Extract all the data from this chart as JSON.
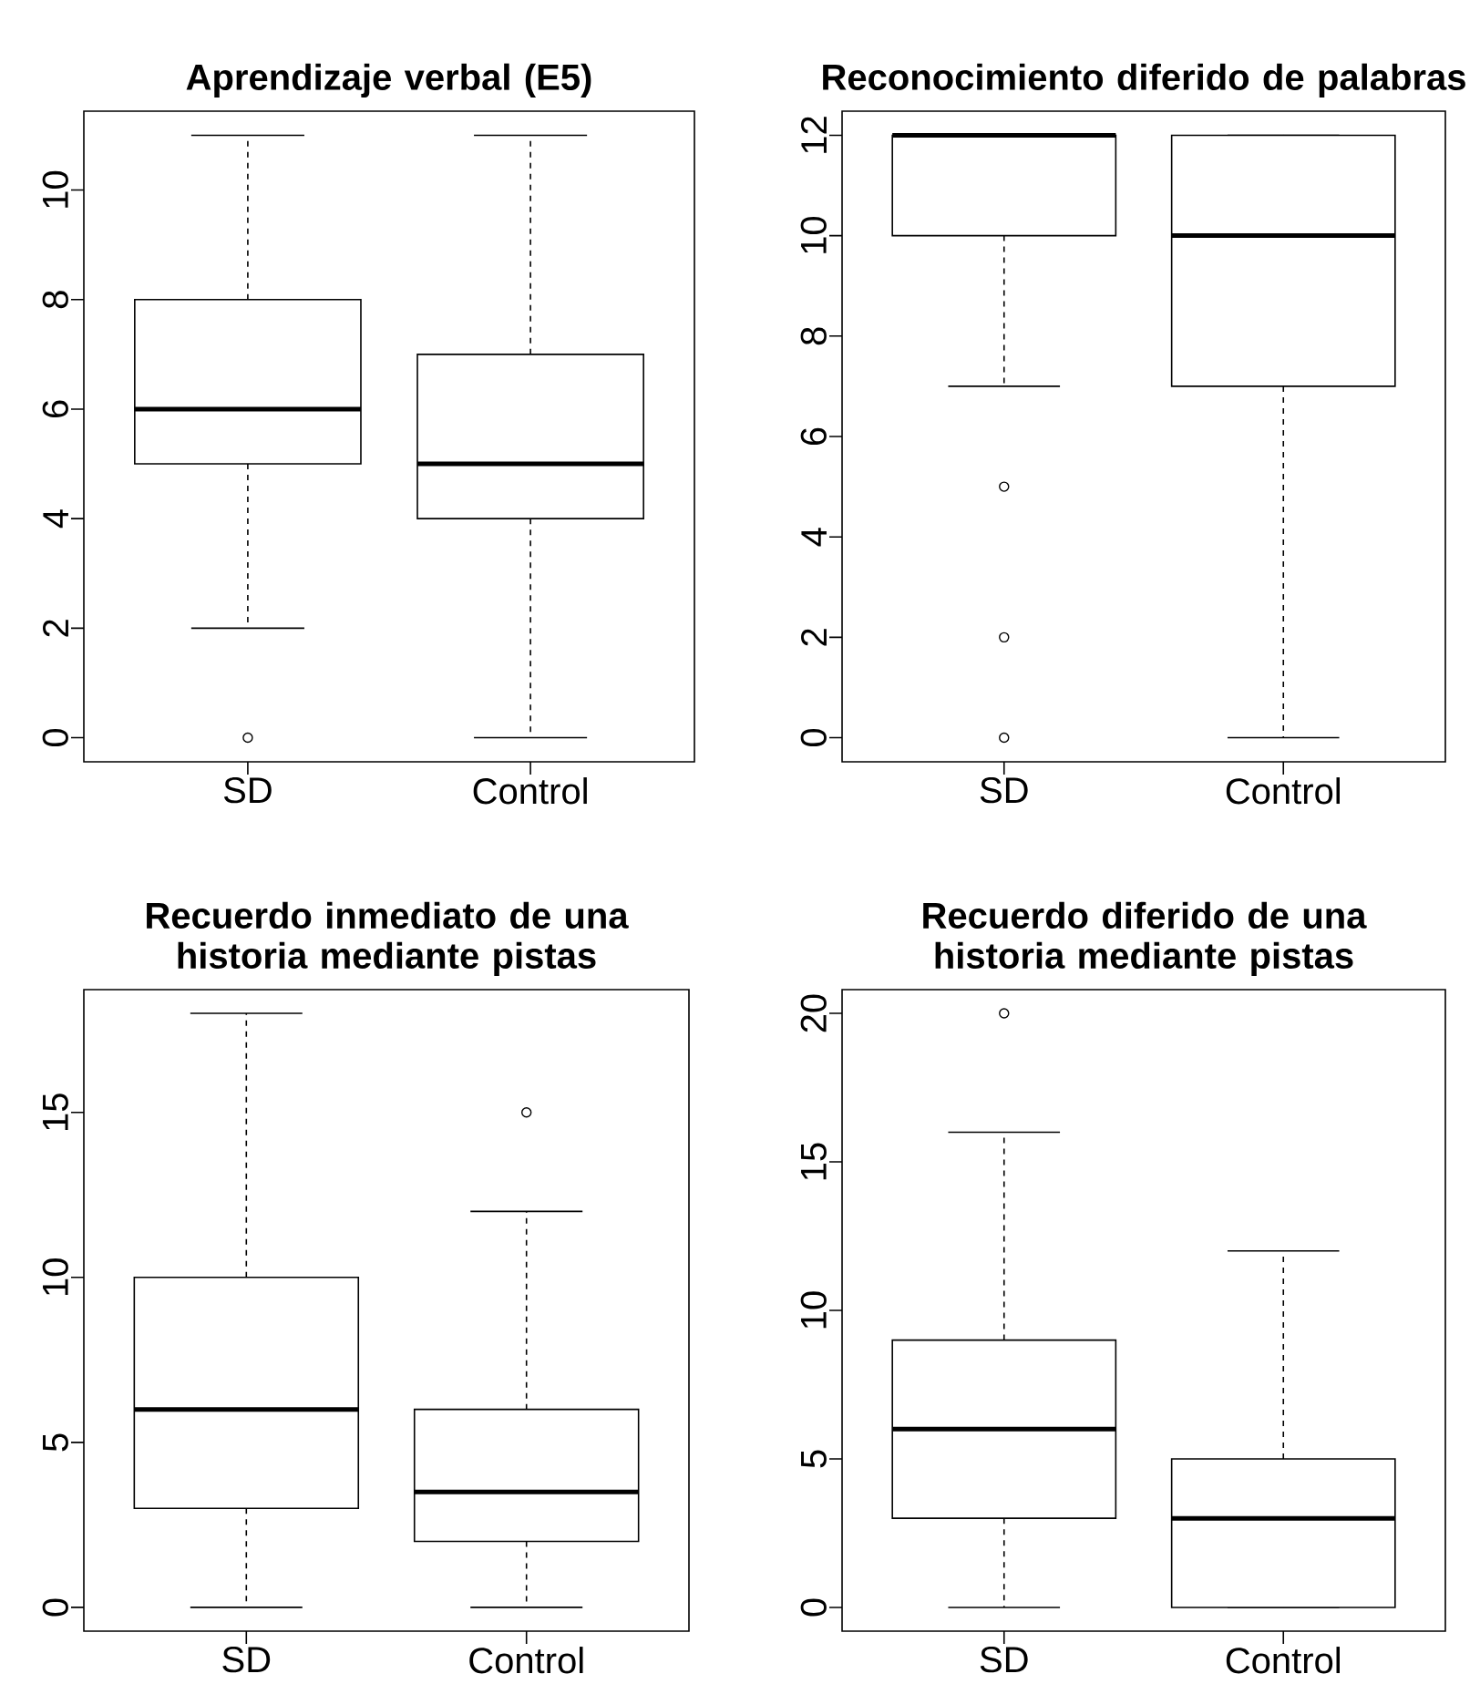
{
  "chart_data": [
    {
      "type": "box",
      "title": "Aprendizaje verbal (E5)",
      "categories": [
        "SD",
        "Control"
      ],
      "boxes": [
        {
          "low": 2,
          "q1": 5,
          "median": 6,
          "q3": 8,
          "high": 11,
          "outliers": [
            0
          ]
        },
        {
          "low": 0,
          "q1": 4,
          "median": 5,
          "q3": 7,
          "high": 11
        }
      ],
      "ylim": [
        -0.44,
        11.44
      ],
      "yticks": [
        0,
        2,
        4,
        6,
        8,
        10
      ]
    },
    {
      "type": "box",
      "title": "Reconocimiento diferido de palabras",
      "categories": [
        "SD",
        "Control"
      ],
      "boxes": [
        {
          "low": 7,
          "q1": 10,
          "median": 12,
          "q3": 12,
          "high": 12,
          "outliers": [
            5,
            2,
            0
          ]
        },
        {
          "low": 0,
          "q1": 7,
          "median": 10,
          "q3": 12,
          "high": 12
        }
      ],
      "ylim": [
        -0.48,
        12.48
      ],
      "yticks": [
        0,
        2,
        4,
        6,
        8,
        10,
        12
      ]
    },
    {
      "type": "box",
      "title": "Recuerdo inmediato de una historia mediante pistas",
      "categories": [
        "SD",
        "Control"
      ],
      "boxes": [
        {
          "low": 0,
          "q1": 3,
          "median": 6,
          "q3": 10,
          "high": 18
        },
        {
          "low": 0,
          "q1": 2,
          "median": 3.5,
          "q3": 6,
          "high": 12,
          "outliers": [
            15
          ]
        }
      ],
      "ylim": [
        -0.72,
        18.72
      ],
      "yticks": [
        0,
        5,
        10,
        15
      ]
    },
    {
      "type": "box",
      "title": "Recuerdo diferido de una historia mediante pistas",
      "categories": [
        "SD",
        "Control"
      ],
      "boxes": [
        {
          "low": 0,
          "q1": 3,
          "median": 6,
          "q3": 9,
          "high": 16,
          "outliers": [
            20
          ]
        },
        {
          "low": 0,
          "q1": 0,
          "median": 3,
          "q3": 5,
          "high": 12
        }
      ],
      "ylim": [
        -0.8,
        20.8
      ],
      "yticks": [
        0,
        5,
        10,
        15,
        20
      ]
    }
  ]
}
